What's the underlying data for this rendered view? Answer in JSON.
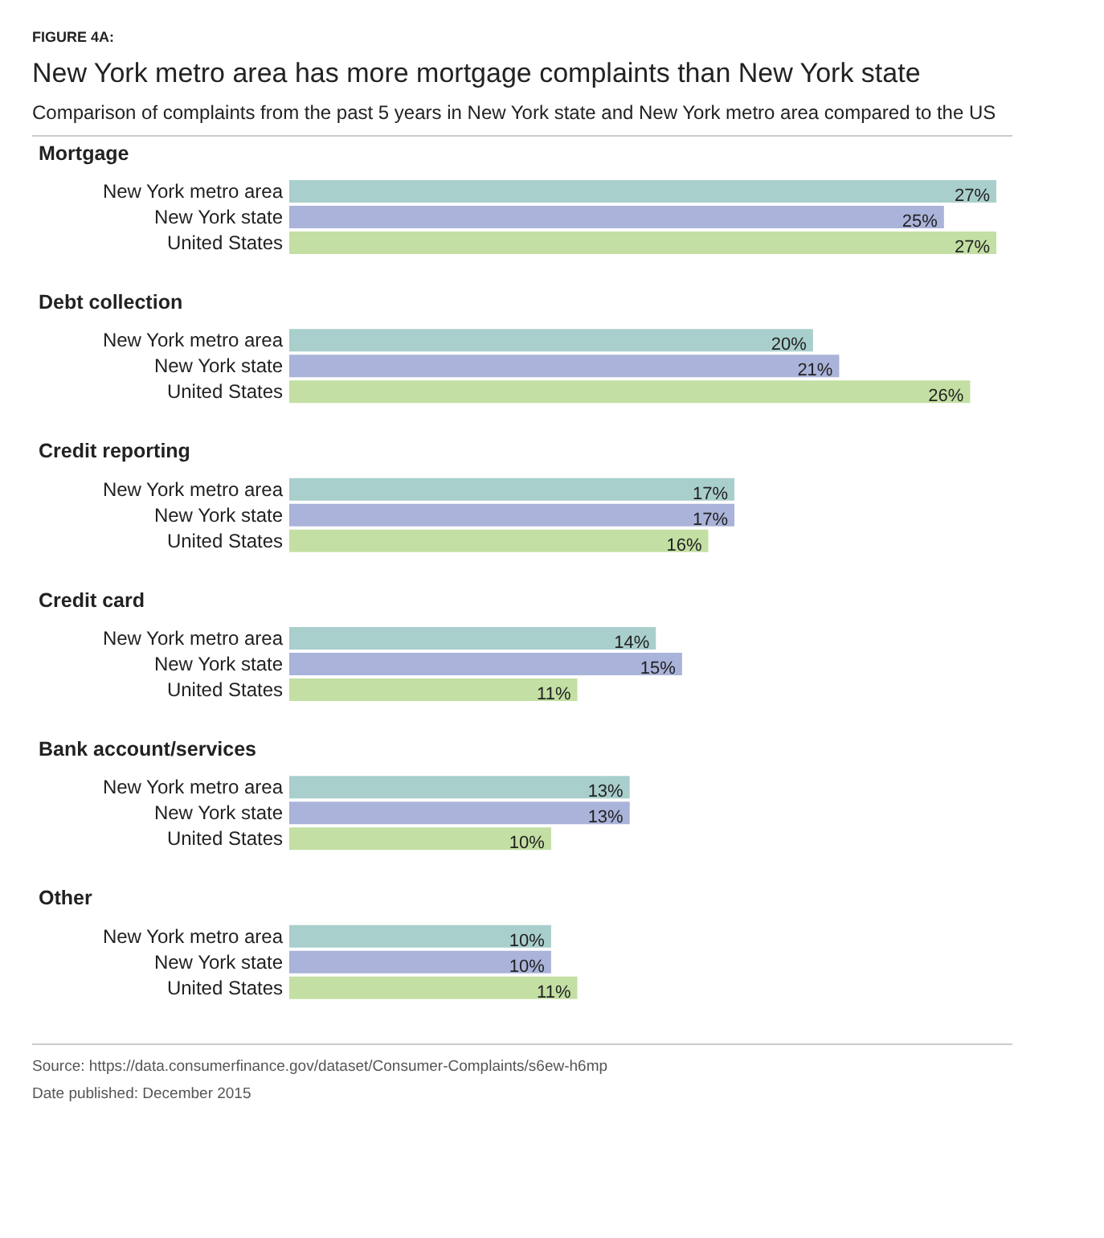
{
  "chart_data": {
    "type": "bar",
    "orientation": "horizontal",
    "title": "New York metro area has more mortgage complaints than New York state",
    "subtitle": "Comparison of complaints from the past 5 years in New York state and New York metro area compared to the US",
    "categories": [
      "Mortgage",
      "Debt collection",
      "Credit reporting",
      "Credit card",
      "Bank account/services",
      "Other"
    ],
    "series": [
      {
        "name": "New York metro area",
        "color": "#a9cfcc",
        "values": [
          27,
          20,
          17,
          14,
          13,
          10
        ],
        "value_labels": [
          "27%",
          "20%",
          "17%",
          "14%",
          "13%",
          "10%"
        ]
      },
      {
        "name": "New York state",
        "color": "#aab3d9",
        "values": [
          25,
          21,
          17,
          15,
          13,
          10
        ],
        "value_labels": [
          "25%",
          "21%",
          "17%",
          "15%",
          "13%",
          "10%"
        ]
      },
      {
        "name": "United States",
        "color": "#c3dfa3",
        "values": [
          27,
          26,
          16,
          11,
          10,
          11
        ],
        "value_labels": [
          "27%",
          "26%",
          "16%",
          "11%",
          "10%",
          "11%"
        ]
      }
    ],
    "tick_labels": "y",
    "legend": false,
    "grid": false,
    "annotations": [
      "FIGURE 4A:",
      "Source: https://data.consumerfinance.gov/dataset/Consumer-Complaints/s6ew-h6mp",
      "Date published: December 2015"
    ]
  }
}
